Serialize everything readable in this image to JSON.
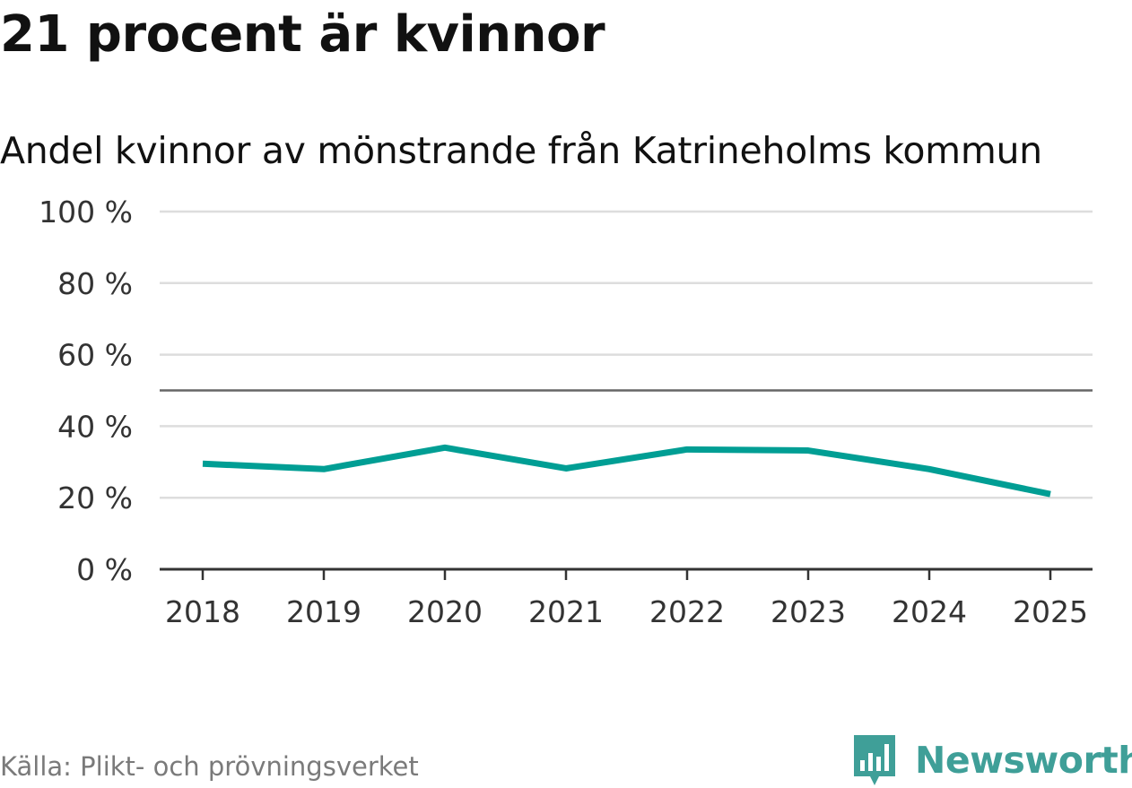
{
  "header": {
    "title": "21 procent är kvinnor",
    "subtitle": "Andel kvinnor av mönstrande från Katrineholms kommun"
  },
  "footer": {
    "source": "Källa: Plikt- och prövningsverket",
    "brand": "Newsworthy",
    "brand_icon": "bar-chart-speech-bubble-icon"
  },
  "colors": {
    "line": "#009e94",
    "grid": "#dddddd",
    "reference_line": "#666666",
    "axis": "#333333",
    "brand": "#3f9f98"
  },
  "chart_data": {
    "type": "line",
    "title": "21 procent är kvinnor",
    "subtitle": "Andel kvinnor av mönstrande från Katrineholms kommun",
    "categories": [
      "2018",
      "2019",
      "2020",
      "2021",
      "2022",
      "2023",
      "2024",
      "2025"
    ],
    "series": [
      {
        "name": "Andel kvinnor",
        "values": [
          29.5,
          28,
          34,
          28.2,
          33.5,
          33.2,
          28,
          21
        ]
      }
    ],
    "ylim": [
      0,
      100
    ],
    "yticks": [
      0,
      20,
      40,
      60,
      80,
      100
    ],
    "ytick_labels": [
      "0 %",
      "20 %",
      "40 %",
      "60 %",
      "80 %",
      "100 %"
    ],
    "reference_line": 50,
    "grid": true,
    "xlabel": "",
    "ylabel": ""
  }
}
